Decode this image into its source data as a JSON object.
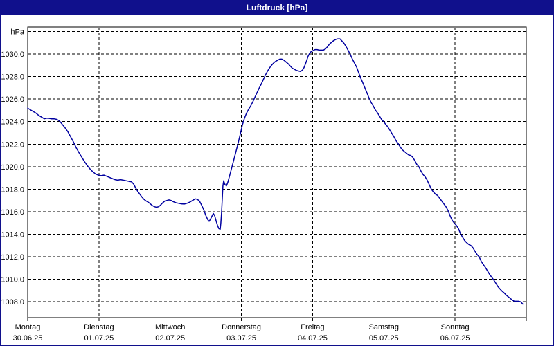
{
  "window": {
    "title": "Luftdruck [hPa]"
  },
  "colors": {
    "titlebar_bg": "#10108C",
    "titlebar_text": "#FFFFFF",
    "window_border": "#10108C",
    "plot_border": "#000000",
    "gridline": "#000000",
    "line": "#0000A0",
    "plot_bg": "#FFFFFF"
  },
  "chart_data": {
    "type": "line",
    "title": "Luftdruck [hPa]",
    "ylabel": "hPa",
    "unit_label": "hPa",
    "grid": "dashed",
    "legend": "none",
    "y_axis": {
      "value_at_plot_top": 1032.4,
      "value_at_plot_bottom": 1006.6,
      "gridline_values": [
        1032,
        1030,
        1028,
        1026,
        1024,
        1022,
        1020,
        1018,
        1016,
        1014,
        1012,
        1010,
        1008
      ],
      "ticks": [
        {
          "value": 1030,
          "label": "1030,0"
        },
        {
          "value": 1028,
          "label": "1028,0"
        },
        {
          "value": 1026,
          "label": "1026,0"
        },
        {
          "value": 1024,
          "label": "1024,0"
        },
        {
          "value": 1022,
          "label": "1022,0"
        },
        {
          "value": 1020,
          "label": "1020,0"
        },
        {
          "value": 1018,
          "label": "1018,0"
        },
        {
          "value": 1016,
          "label": "1016,0"
        },
        {
          "value": 1014,
          "label": "1014,0"
        },
        {
          "value": 1012,
          "label": "1012,0"
        },
        {
          "value": 1010,
          "label": "1010,0"
        },
        {
          "value": 1008,
          "label": "1008,0"
        }
      ]
    },
    "x_axis": {
      "span_days": 7,
      "tick_positions_days": [
        0,
        1,
        2,
        3,
        4,
        5,
        6,
        7
      ],
      "day_labels": [
        {
          "day": 0,
          "name": "Montag",
          "date": "30.06.25"
        },
        {
          "day": 1,
          "name": "Dienstag",
          "date": "01.07.25"
        },
        {
          "day": 2,
          "name": "Mittwoch",
          "date": "02.07.25"
        },
        {
          "day": 3,
          "name": "Donnerstag",
          "date": "03.07.25"
        },
        {
          "day": 4,
          "name": "Freitag",
          "date": "04.07.25"
        },
        {
          "day": 5,
          "name": "Samstag",
          "date": "05.07.25"
        },
        {
          "day": 6,
          "name": "Sonntag",
          "date": "06.07.25"
        }
      ]
    },
    "series": [
      {
        "name": "Luftdruck",
        "color": "#0000A0",
        "points": [
          [
            0.0,
            1025.2
          ],
          [
            0.039,
            1025.05
          ],
          [
            0.078,
            1024.9
          ],
          [
            0.117,
            1024.75
          ],
          [
            0.156,
            1024.55
          ],
          [
            0.194,
            1024.4
          ],
          [
            0.233,
            1024.25
          ],
          [
            0.263,
            1024.3
          ],
          [
            0.292,
            1024.3
          ],
          [
            0.331,
            1024.25
          ],
          [
            0.369,
            1024.25
          ],
          [
            0.408,
            1024.2
          ],
          [
            0.447,
            1024.05
          ],
          [
            0.486,
            1023.75
          ],
          [
            0.525,
            1023.45
          ],
          [
            0.564,
            1023.1
          ],
          [
            0.603,
            1022.65
          ],
          [
            0.642,
            1022.2
          ],
          [
            0.68,
            1021.7
          ],
          [
            0.719,
            1021.25
          ],
          [
            0.758,
            1020.85
          ],
          [
            0.797,
            1020.45
          ],
          [
            0.836,
            1020.1
          ],
          [
            0.875,
            1019.8
          ],
          [
            0.914,
            1019.55
          ],
          [
            0.953,
            1019.35
          ],
          [
            0.992,
            1019.25
          ],
          [
            1.031,
            1019.2
          ],
          [
            1.069,
            1019.25
          ],
          [
            1.108,
            1019.15
          ],
          [
            1.147,
            1019.05
          ],
          [
            1.186,
            1018.95
          ],
          [
            1.225,
            1018.85
          ],
          [
            1.264,
            1018.8
          ],
          [
            1.303,
            1018.85
          ],
          [
            1.342,
            1018.8
          ],
          [
            1.381,
            1018.75
          ],
          [
            1.419,
            1018.7
          ],
          [
            1.458,
            1018.65
          ],
          [
            1.488,
            1018.45
          ],
          [
            1.517,
            1018.1
          ],
          [
            1.546,
            1017.8
          ],
          [
            1.575,
            1017.55
          ],
          [
            1.604,
            1017.3
          ],
          [
            1.633,
            1017.1
          ],
          [
            1.663,
            1016.95
          ],
          [
            1.692,
            1016.85
          ],
          [
            1.721,
            1016.7
          ],
          [
            1.75,
            1016.55
          ],
          [
            1.779,
            1016.45
          ],
          [
            1.808,
            1016.4
          ],
          [
            1.838,
            1016.45
          ],
          [
            1.867,
            1016.6
          ],
          [
            1.896,
            1016.8
          ],
          [
            1.925,
            1016.95
          ],
          [
            1.954,
            1017.0
          ],
          [
            1.983,
            1017.05
          ],
          [
            2.013,
            1017.0
          ],
          [
            2.042,
            1016.9
          ],
          [
            2.081,
            1016.8
          ],
          [
            2.119,
            1016.75
          ],
          [
            2.158,
            1016.7
          ],
          [
            2.197,
            1016.68
          ],
          [
            2.236,
            1016.75
          ],
          [
            2.275,
            1016.85
          ],
          [
            2.314,
            1017.0
          ],
          [
            2.353,
            1017.15
          ],
          [
            2.382,
            1017.1
          ],
          [
            2.411,
            1016.95
          ],
          [
            2.44,
            1016.6
          ],
          [
            2.469,
            1016.2
          ],
          [
            2.499,
            1015.7
          ],
          [
            2.528,
            1015.3
          ],
          [
            2.547,
            1015.15
          ],
          [
            2.567,
            1015.35
          ],
          [
            2.586,
            1015.6
          ],
          [
            2.606,
            1015.85
          ],
          [
            2.625,
            1015.65
          ],
          [
            2.644,
            1015.2
          ],
          [
            2.664,
            1014.8
          ],
          [
            2.683,
            1014.5
          ],
          [
            2.703,
            1014.45
          ],
          [
            2.712,
            1015.0
          ],
          [
            2.722,
            1016.0
          ],
          [
            2.732,
            1017.2
          ],
          [
            2.741,
            1018.3
          ],
          [
            2.751,
            1018.75
          ],
          [
            2.77,
            1018.4
          ],
          [
            2.79,
            1018.3
          ],
          [
            2.809,
            1018.6
          ],
          [
            2.839,
            1019.3
          ],
          [
            2.868,
            1020.0
          ],
          [
            2.897,
            1020.7
          ],
          [
            2.926,
            1021.4
          ],
          [
            2.955,
            1022.1
          ],
          [
            2.985,
            1022.9
          ],
          [
            3.014,
            1023.7
          ],
          [
            3.043,
            1024.3
          ],
          [
            3.072,
            1024.75
          ],
          [
            3.101,
            1025.1
          ],
          [
            3.131,
            1025.4
          ],
          [
            3.16,
            1025.75
          ],
          [
            3.189,
            1026.15
          ],
          [
            3.218,
            1026.55
          ],
          [
            3.247,
            1026.95
          ],
          [
            3.276,
            1027.3
          ],
          [
            3.306,
            1027.7
          ],
          [
            3.335,
            1028.1
          ],
          [
            3.364,
            1028.45
          ],
          [
            3.393,
            1028.75
          ],
          [
            3.422,
            1029.0
          ],
          [
            3.451,
            1029.2
          ],
          [
            3.48,
            1029.35
          ],
          [
            3.51,
            1029.45
          ],
          [
            3.539,
            1029.55
          ],
          [
            3.568,
            1029.55
          ],
          [
            3.597,
            1029.45
          ],
          [
            3.626,
            1029.3
          ],
          [
            3.656,
            1029.15
          ],
          [
            3.685,
            1028.95
          ],
          [
            3.714,
            1028.75
          ],
          [
            3.743,
            1028.65
          ],
          [
            3.772,
            1028.55
          ],
          [
            3.801,
            1028.5
          ],
          [
            3.831,
            1028.45
          ],
          [
            3.86,
            1028.6
          ],
          [
            3.879,
            1028.8
          ],
          [
            3.898,
            1029.1
          ],
          [
            3.918,
            1029.45
          ],
          [
            3.937,
            1029.8
          ],
          [
            3.956,
            1030.05
          ],
          [
            3.976,
            1030.2
          ],
          [
            4.005,
            1030.3
          ],
          [
            4.034,
            1030.4
          ],
          [
            4.063,
            1030.4
          ],
          [
            4.092,
            1030.35
          ],
          [
            4.122,
            1030.35
          ],
          [
            4.151,
            1030.35
          ],
          [
            4.18,
            1030.45
          ],
          [
            4.209,
            1030.65
          ],
          [
            4.238,
            1030.9
          ],
          [
            4.267,
            1031.05
          ],
          [
            4.296,
            1031.2
          ],
          [
            4.326,
            1031.3
          ],
          [
            4.355,
            1031.35
          ],
          [
            4.384,
            1031.35
          ],
          [
            4.413,
            1031.15
          ],
          [
            4.442,
            1030.95
          ],
          [
            4.471,
            1030.65
          ],
          [
            4.501,
            1030.3
          ],
          [
            4.53,
            1029.95
          ],
          [
            4.559,
            1029.55
          ],
          [
            4.588,
            1029.2
          ],
          [
            4.617,
            1028.85
          ],
          [
            4.646,
            1028.35
          ],
          [
            4.676,
            1027.85
          ],
          [
            4.705,
            1027.45
          ],
          [
            4.734,
            1027.0
          ],
          [
            4.763,
            1026.55
          ],
          [
            4.792,
            1026.1
          ],
          [
            4.821,
            1025.7
          ],
          [
            4.851,
            1025.4
          ],
          [
            4.88,
            1025.05
          ],
          [
            4.909,
            1024.8
          ],
          [
            4.938,
            1024.5
          ],
          [
            4.967,
            1024.2
          ],
          [
            4.997,
            1024.0
          ],
          [
            5.026,
            1023.75
          ],
          [
            5.055,
            1023.55
          ],
          [
            5.084,
            1023.25
          ],
          [
            5.113,
            1022.95
          ],
          [
            5.142,
            1022.65
          ],
          [
            5.172,
            1022.3
          ],
          [
            5.201,
            1022.05
          ],
          [
            5.23,
            1021.75
          ],
          [
            5.259,
            1021.5
          ],
          [
            5.288,
            1021.35
          ],
          [
            5.317,
            1021.2
          ],
          [
            5.347,
            1021.05
          ],
          [
            5.376,
            1021.0
          ],
          [
            5.405,
            1020.85
          ],
          [
            5.434,
            1020.55
          ],
          [
            5.463,
            1020.2
          ],
          [
            5.492,
            1020.0
          ],
          [
            5.522,
            1019.6
          ],
          [
            5.551,
            1019.3
          ],
          [
            5.58,
            1019.1
          ],
          [
            5.609,
            1018.8
          ],
          [
            5.638,
            1018.4
          ],
          [
            5.667,
            1018.0
          ],
          [
            5.697,
            1017.75
          ],
          [
            5.726,
            1017.55
          ],
          [
            5.755,
            1017.45
          ],
          [
            5.784,
            1017.2
          ],
          [
            5.813,
            1016.95
          ],
          [
            5.842,
            1016.7
          ],
          [
            5.872,
            1016.45
          ],
          [
            5.901,
            1016.1
          ],
          [
            5.93,
            1015.65
          ],
          [
            5.959,
            1015.25
          ],
          [
            5.988,
            1015.0
          ],
          [
            6.017,
            1014.8
          ],
          [
            6.047,
            1014.5
          ],
          [
            6.076,
            1014.05
          ],
          [
            6.105,
            1013.75
          ],
          [
            6.134,
            1013.45
          ],
          [
            6.163,
            1013.25
          ],
          [
            6.192,
            1013.1
          ],
          [
            6.222,
            1013.0
          ],
          [
            6.251,
            1012.8
          ],
          [
            6.28,
            1012.5
          ],
          [
            6.309,
            1012.2
          ],
          [
            6.338,
            1012.0
          ],
          [
            6.367,
            1011.6
          ],
          [
            6.397,
            1011.3
          ],
          [
            6.426,
            1011.05
          ],
          [
            6.455,
            1010.75
          ],
          [
            6.484,
            1010.45
          ],
          [
            6.513,
            1010.2
          ],
          [
            6.542,
            1009.95
          ],
          [
            6.572,
            1009.65
          ],
          [
            6.601,
            1009.35
          ],
          [
            6.63,
            1009.15
          ],
          [
            6.659,
            1008.95
          ],
          [
            6.688,
            1008.8
          ],
          [
            6.717,
            1008.6
          ],
          [
            6.747,
            1008.45
          ],
          [
            6.776,
            1008.3
          ],
          [
            6.805,
            1008.15
          ],
          [
            6.834,
            1008.05
          ],
          [
            6.863,
            1008.05
          ],
          [
            6.892,
            1008.05
          ],
          [
            6.921,
            1008.0
          ],
          [
            6.951,
            1007.8
          ]
        ]
      }
    ]
  }
}
